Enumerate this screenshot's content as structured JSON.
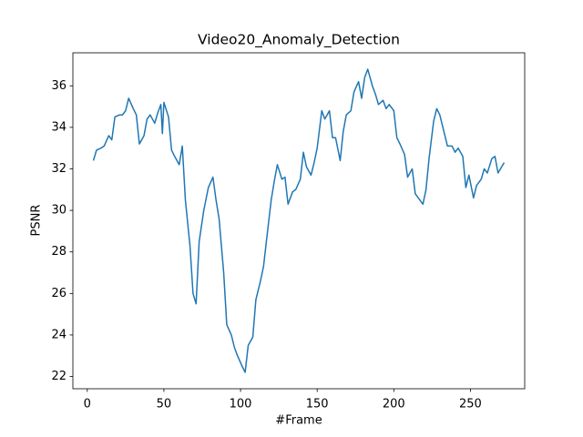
{
  "chart_data": {
    "type": "line",
    "title": "Video20_Anomaly_Detection",
    "x_label": "#Frame",
    "y_label": "PSNR",
    "x": [
      4,
      6,
      9,
      11,
      14,
      16,
      18,
      21,
      23,
      25,
      27,
      30,
      32,
      34,
      37,
      39,
      41,
      44,
      46,
      48,
      49,
      50,
      53,
      55,
      57,
      60,
      62,
      64,
      67,
      69,
      71,
      73,
      76,
      79,
      82,
      84,
      86,
      89,
      91,
      94,
      96,
      98,
      101,
      103,
      105,
      108,
      110,
      113,
      115,
      117,
      120,
      122,
      124,
      127,
      129,
      131,
      134,
      136,
      139,
      141,
      143,
      146,
      148,
      150,
      153,
      155,
      158,
      160,
      162,
      165,
      167,
      169,
      172,
      174,
      177,
      179,
      181,
      183,
      186,
      188,
      190,
      193,
      195,
      197,
      200,
      202,
      204,
      207,
      209,
      212,
      214,
      216,
      219,
      221,
      223,
      226,
      228,
      230,
      233,
      235,
      238,
      240,
      242,
      245,
      247,
      249,
      252,
      254,
      257,
      259,
      261,
      264,
      266,
      268,
      272
    ],
    "series": [
      {
        "name": "PSNR",
        "color": "#1f77b4",
        "values": [
          32.4,
          32.9,
          33.0,
          33.1,
          33.6,
          33.4,
          34.5,
          34.6,
          34.6,
          34.8,
          35.4,
          34.9,
          34.6,
          33.2,
          33.6,
          34.4,
          34.6,
          34.2,
          34.7,
          35.1,
          33.7,
          35.2,
          34.5,
          32.9,
          32.6,
          32.2,
          33.1,
          30.5,
          28.3,
          26.0,
          25.5,
          28.5,
          30.0,
          31.1,
          31.6,
          30.5,
          29.6,
          27.0,
          24.5,
          24.0,
          23.4,
          23.0,
          22.5,
          22.2,
          23.5,
          23.9,
          25.7,
          26.6,
          27.3,
          28.6,
          30.5,
          31.4,
          32.2,
          31.5,
          31.6,
          30.3,
          30.9,
          31.0,
          31.5,
          32.8,
          32.1,
          31.7,
          32.3,
          33.0,
          34.8,
          34.4,
          34.8,
          33.5,
          33.5,
          32.4,
          33.8,
          34.6,
          34.8,
          35.7,
          36.2,
          35.4,
          36.4,
          36.8,
          36.0,
          35.6,
          35.1,
          35.3,
          34.9,
          35.1,
          34.8,
          33.5,
          33.2,
          32.7,
          31.6,
          32.0,
          30.8,
          30.6,
          30.3,
          31.0,
          32.5,
          34.3,
          34.9,
          34.6,
          33.7,
          33.1,
          33.1,
          32.8,
          33.0,
          32.6,
          31.1,
          31.7,
          30.6,
          31.2,
          31.5,
          32.0,
          31.8,
          32.5,
          32.6,
          31.8,
          32.3
        ]
      }
    ],
    "xlim": [
      -9.4,
      285.4
    ],
    "xticks": [
      0,
      50,
      100,
      150,
      200,
      250
    ],
    "ylim": [
      21.41,
      37.59
    ],
    "yticks": [
      22,
      24,
      26,
      28,
      30,
      32,
      34,
      36
    ],
    "grid": false
  }
}
